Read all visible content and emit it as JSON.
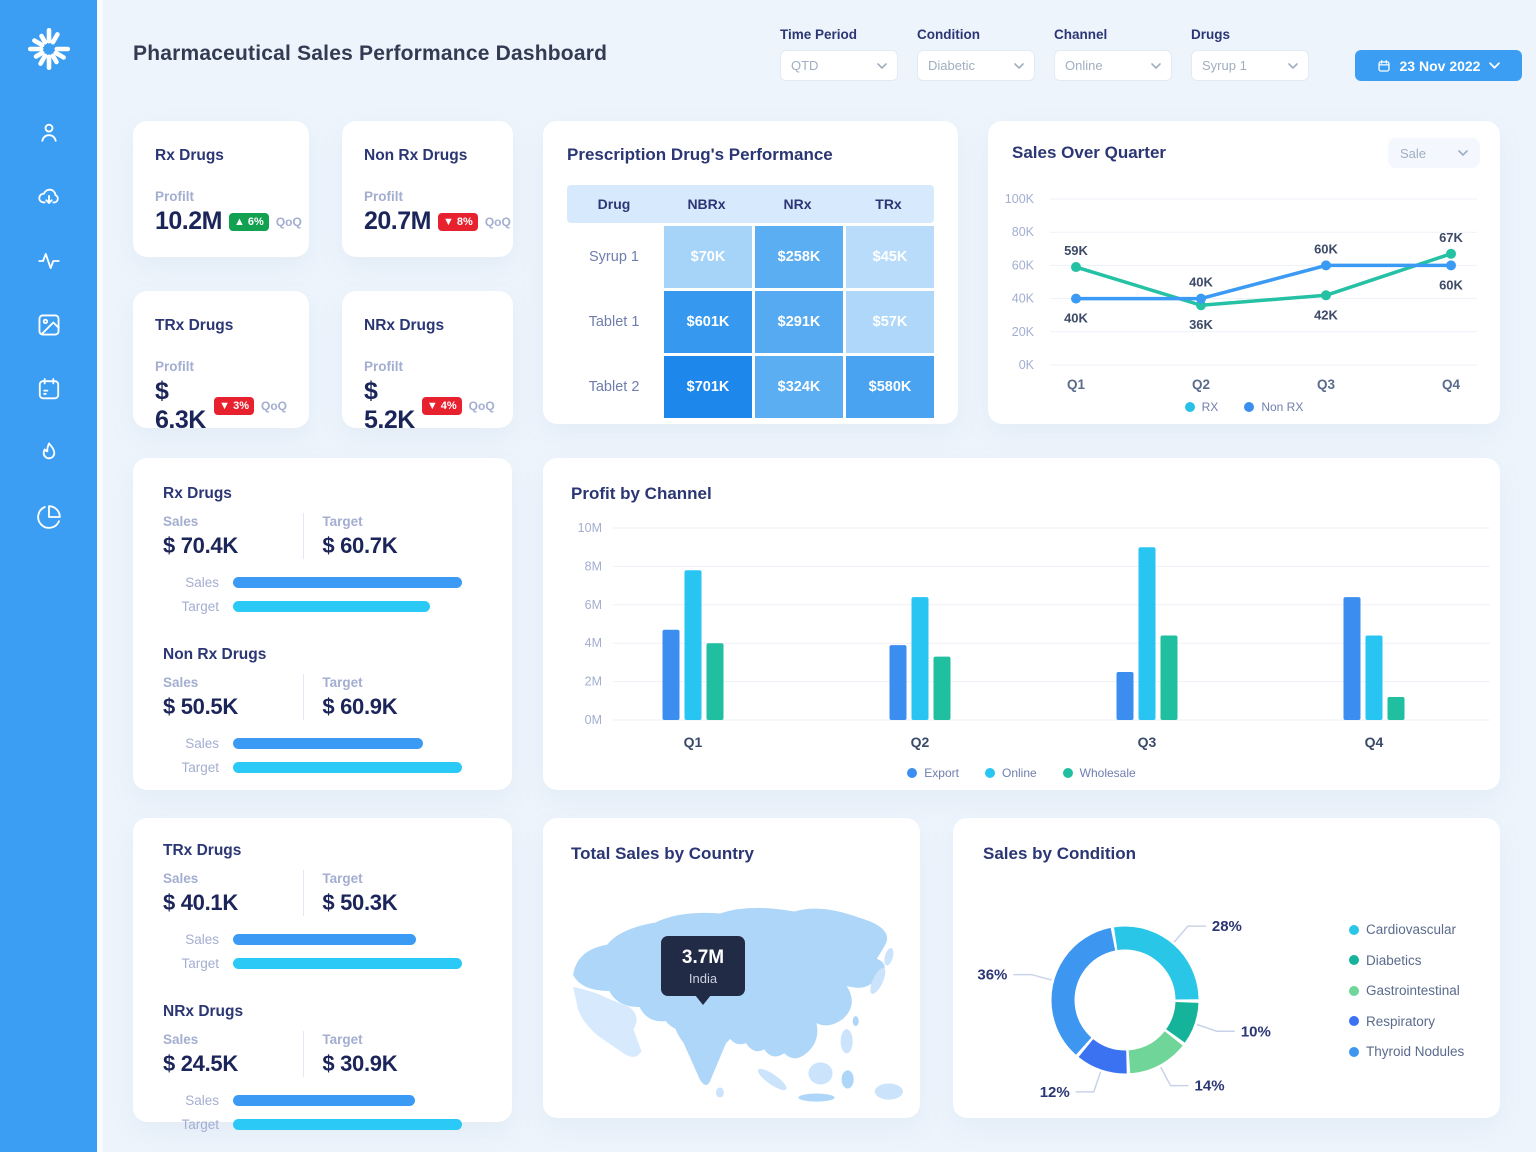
{
  "app": {
    "background": "#EDF4FC",
    "sidebar_color": "#3B9EF3",
    "accent": "#3B9EF3"
  },
  "sidebar": {
    "logo": "spinner-logo",
    "nav_icons": [
      "user",
      "cloud-download",
      "activity",
      "image",
      "calendar",
      "flame",
      "pie-chart"
    ]
  },
  "header": {
    "title": "Pharmaceutical Sales Performance Dashboard",
    "filters": [
      {
        "label": "Time Period",
        "value": "QTD"
      },
      {
        "label": "Condition",
        "value": "Diabetic"
      },
      {
        "label": "Channel",
        "value": "Online"
      },
      {
        "label": "Drugs",
        "value": "Syrup 1"
      }
    ],
    "date_button": {
      "label": "23 Nov 2022"
    }
  },
  "kpi_cards": [
    {
      "title": "Rx Drugs",
      "metric_label": "Profilt",
      "value": "10.2M",
      "delta": "6%",
      "direction": "up",
      "badge_color": "#12A150",
      "suffix": "QoQ"
    },
    {
      "title": "Non Rx Drugs",
      "metric_label": "Profilt",
      "value": "20.7M",
      "delta": "8%",
      "direction": "down",
      "badge_color": "#E8212E",
      "suffix": "QoQ"
    },
    {
      "title": "TRx Drugs",
      "metric_label": "Profilt",
      "value": "$ 6.3K",
      "delta": "3%",
      "direction": "down",
      "badge_color": "#E8212E",
      "suffix": "QoQ"
    },
    {
      "title": "NRx Drugs",
      "metric_label": "Profilt",
      "value": "$ 5.2K",
      "delta": "4%",
      "direction": "down",
      "badge_color": "#E8212E",
      "suffix": "QoQ"
    }
  ],
  "heatmap": {
    "title": "Prescription Drug's Performance",
    "columns": [
      "Drug",
      "NBRx",
      "NRx",
      "TRx"
    ],
    "rows": [
      {
        "drug": "Syrup 1",
        "cells": [
          {
            "text": "$70K",
            "color": "#A6D3F8"
          },
          {
            "text": "$258K",
            "color": "#5CAEF2"
          },
          {
            "text": "$45K",
            "color": "#B8DCFA"
          }
        ]
      },
      {
        "drug": "Tablet 1",
        "cells": [
          {
            "text": "$601K",
            "color": "#3698EF"
          },
          {
            "text": "$291K",
            "color": "#55AAF1"
          },
          {
            "text": "$57K",
            "color": "#AED7F9"
          }
        ]
      },
      {
        "drug": "Tablet 2",
        "cells": [
          {
            "text": "$701K",
            "color": "#1D87EC"
          },
          {
            "text": "$324K",
            "color": "#5CAEF2"
          },
          {
            "text": "$580K",
            "color": "#49A3F0"
          }
        ]
      }
    ]
  },
  "chart_data": [
    {
      "id": "sales_over_quarter",
      "type": "line",
      "title": "Sales Over Quarter",
      "dropdown_value": "Sale",
      "categories": [
        "Q1",
        "Q2",
        "Q3",
        "Q4"
      ],
      "ylim": [
        0,
        100
      ],
      "yticks": [
        "0K",
        "20K",
        "40K",
        "60K",
        "80K",
        "100K"
      ],
      "grid": true,
      "legend_position": "bottom",
      "series": [
        {
          "name": "RX",
          "line_color": "#25C1A4",
          "legend_dot": "#29C0E8",
          "values": [
            59,
            36,
            42,
            67
          ],
          "labels": [
            "59K",
            "36K",
            "42K",
            "67K"
          ],
          "label_side": [
            "above",
            "below",
            "below",
            "above"
          ]
        },
        {
          "name": "Non RX",
          "line_color": "#3B9AF3",
          "legend_dot": "#3B8EF0",
          "values": [
            40,
            40,
            60,
            60
          ],
          "labels": [
            "40K",
            "40K",
            "60K",
            "60K"
          ],
          "label_side": [
            "below",
            "above",
            "above",
            "below"
          ]
        }
      ]
    },
    {
      "id": "profit_by_channel",
      "type": "bar",
      "title": "Profit by Channel",
      "categories": [
        "Q1",
        "Q2",
        "Q3",
        "Q4"
      ],
      "ylim": [
        0,
        10
      ],
      "yticks": [
        "0M",
        "2M",
        "4M",
        "6M",
        "8M",
        "10M"
      ],
      "grid": true,
      "legend_position": "bottom",
      "series": [
        {
          "name": "Export",
          "color": "#3B8EF0",
          "values": [
            4.7,
            3.9,
            2.5,
            6.4
          ]
        },
        {
          "name": "Online",
          "color": "#29C5F2",
          "values": [
            7.8,
            6.4,
            9.0,
            4.4
          ]
        },
        {
          "name": "Wholesale",
          "color": "#1FBFA0",
          "values": [
            4.0,
            3.3,
            4.4,
            1.2
          ]
        }
      ]
    },
    {
      "id": "sales_by_condition",
      "type": "donut",
      "title": "Sales by Condition",
      "start_angle": -10,
      "legend_position": "right",
      "slices": [
        {
          "label": "Cardiovascular",
          "pct": 28,
          "display": "28%",
          "color": "#29C6E8"
        },
        {
          "label": "Diabetics",
          "pct": 10,
          "display": "10%",
          "color": "#16B39B"
        },
        {
          "label": "Gastrointestinal",
          "pct": 14,
          "display": "14%",
          "color": "#6FD598"
        },
        {
          "label": "Respiratory",
          "pct": 12,
          "display": "12%",
          "color": "#3B72F1"
        },
        {
          "label": "Thyroid Nodules",
          "pct": 36,
          "display": "36%",
          "color": "#3D97F0"
        }
      ]
    }
  ],
  "sales_target_cards": [
    {
      "sections": [
        {
          "title": "Rx Drugs",
          "sales_label": "Sales",
          "target_label": "Target",
          "sales": "$ 70.4K",
          "target": "$ 60.7K",
          "sales_value": 70.4,
          "target_value": 60.7
        },
        {
          "title": "Non Rx Drugs",
          "sales_label": "Sales",
          "target_label": "Target",
          "sales": "$ 50.5K",
          "target": "$ 60.9K",
          "sales_value": 50.5,
          "target_value": 60.9
        }
      ]
    },
    {
      "sections": [
        {
          "title": "TRx Drugs",
          "sales_label": "Sales",
          "target_label": "Target",
          "sales": "$ 40.1K",
          "target": "$ 50.3K",
          "sales_value": 40.1,
          "target_value": 50.3
        },
        {
          "title": "NRx Drugs",
          "sales_label": "Sales",
          "target_label": "Target",
          "sales": "$ 24.5K",
          "target": "$ 30.9K",
          "sales_value": 24.5,
          "target_value": 30.9
        }
      ]
    }
  ],
  "map_card": {
    "title": "Total Sales by Country",
    "tooltip": {
      "value": "3.7M",
      "country": "India"
    }
  },
  "colors": {
    "sales_bar": "#3B9AF3",
    "target_bar": "#2BC9F5",
    "grid_line": "#EDF1F7",
    "axis_text": "#A3AED0",
    "point_label": "#3D4A68",
    "map_land": "#ADD6F9",
    "map_land_light": "#D6E9FD",
    "map_land_lighter": "#CBE3FB"
  }
}
